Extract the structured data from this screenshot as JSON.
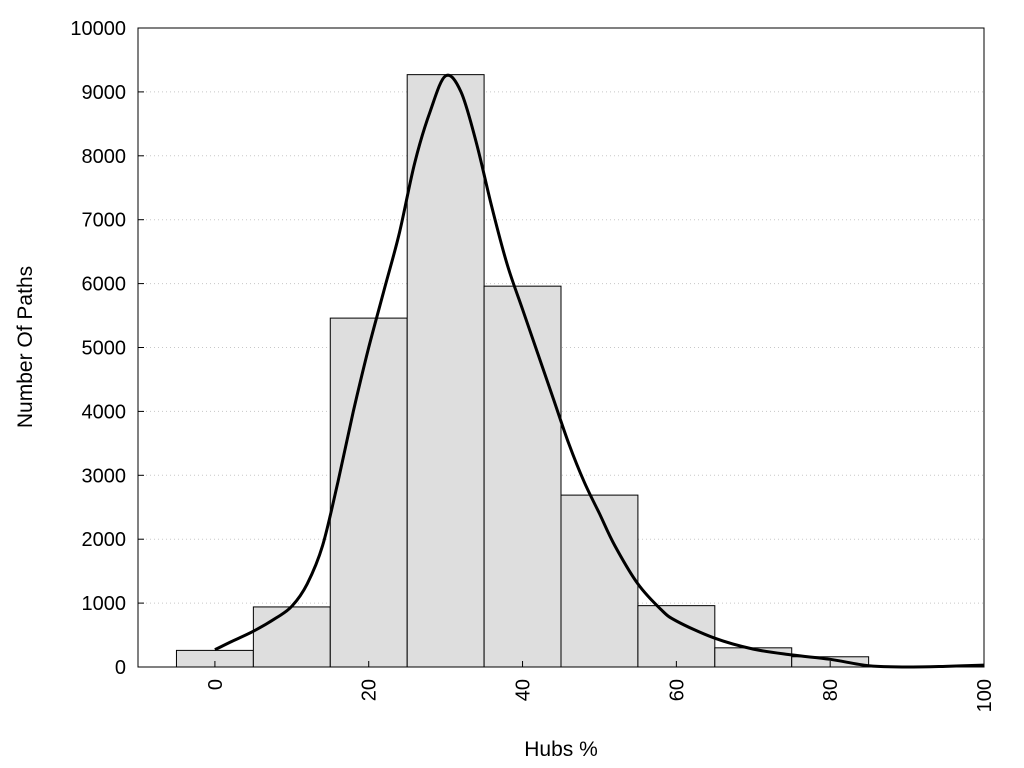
{
  "chart_data": {
    "type": "bar",
    "xlabel": "Hubs %",
    "ylabel": "Number Of Paths",
    "xlim": [
      -10,
      100
    ],
    "ylim": [
      0,
      10000
    ],
    "xticks": [
      0,
      20,
      40,
      60,
      80,
      100
    ],
    "yticks": [
      0,
      1000,
      2000,
      3000,
      4000,
      5000,
      6000,
      7000,
      8000,
      9000,
      10000
    ],
    "grid": "horizontal dotted",
    "bin_width": 10,
    "bins": [
      {
        "center": 0,
        "value": 260
      },
      {
        "center": 10,
        "value": 940
      },
      {
        "center": 20,
        "value": 5460
      },
      {
        "center": 30,
        "value": 9270
      },
      {
        "center": 40,
        "value": 5960
      },
      {
        "center": 50,
        "value": 2690
      },
      {
        "center": 60,
        "value": 960
      },
      {
        "center": 70,
        "value": 300
      },
      {
        "center": 80,
        "value": 160
      },
      {
        "center": 90,
        "value": 0
      }
    ],
    "series": [
      {
        "type": "line",
        "x": [
          0,
          2,
          5,
          8,
          10,
          12,
          14,
          16,
          18,
          20,
          22,
          24,
          26,
          28,
          30,
          32,
          34,
          36,
          38,
          40,
          42,
          44,
          46,
          48,
          50,
          52,
          55,
          58,
          60,
          65,
          70,
          75,
          80,
          85,
          90,
          95,
          100
        ],
        "y": [
          270,
          390,
          560,
          770,
          950,
          1300,
          1900,
          2900,
          4000,
          5000,
          5900,
          6800,
          7900,
          8700,
          9250,
          9000,
          8200,
          7200,
          6300,
          5600,
          4900,
          4200,
          3500,
          2900,
          2400,
          1900,
          1300,
          900,
          720,
          450,
          280,
          190,
          120,
          20,
          0,
          10,
          30
        ]
      }
    ],
    "colors": {
      "bar_fill": "#dedede",
      "bar_edge": "#000000",
      "line": "#000000"
    }
  }
}
